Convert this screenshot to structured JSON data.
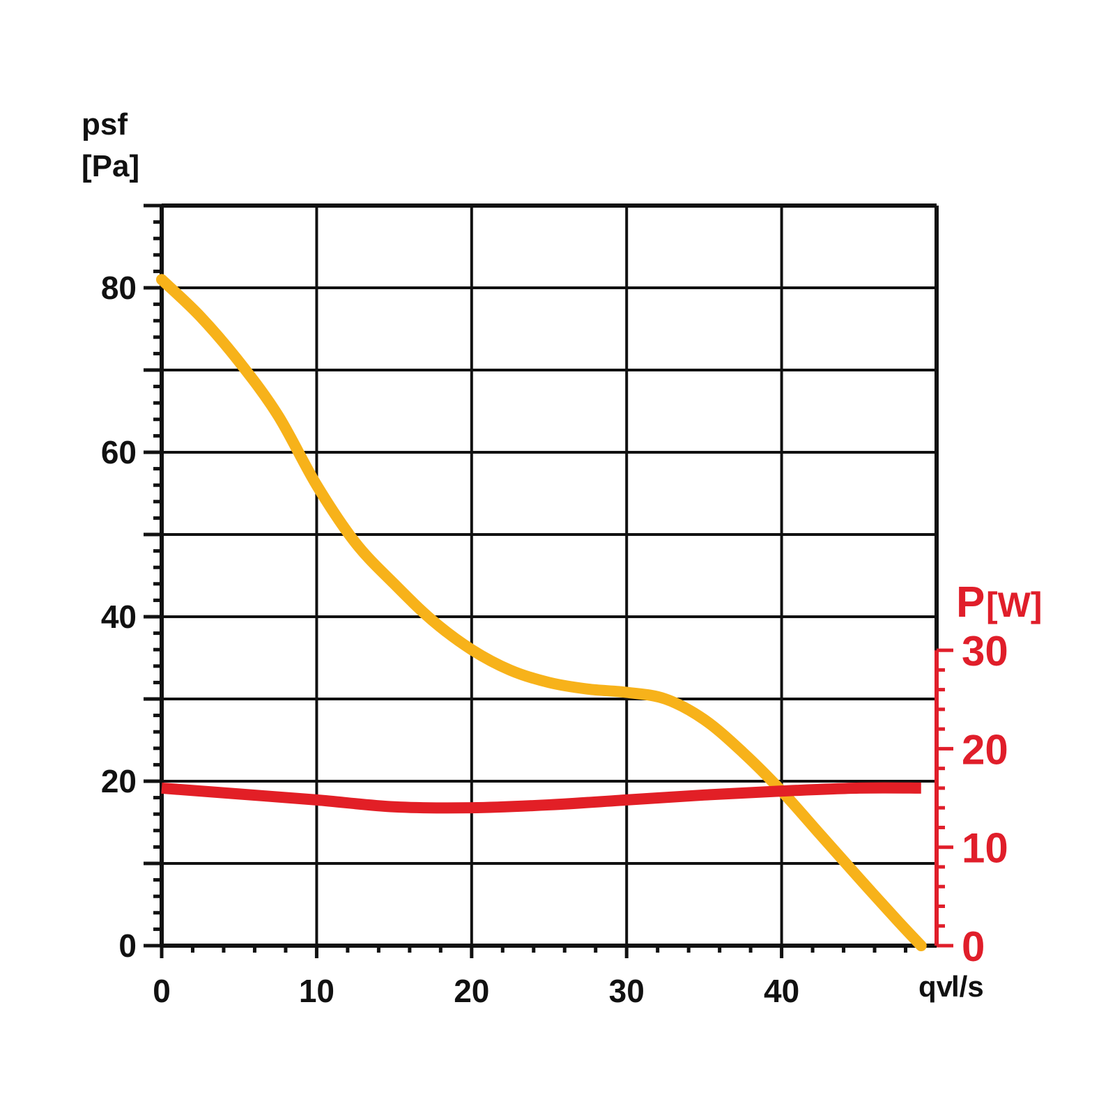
{
  "chart_data": {
    "type": "line",
    "title": "",
    "x_axis": {
      "label_main": "qv",
      "label_unit": "l/s",
      "range": [
        0,
        50
      ],
      "major_ticks": [
        0,
        10,
        20,
        30,
        40
      ],
      "tick_labels": [
        "0",
        "10",
        "20",
        "30",
        "40"
      ],
      "minor_step": 2
    },
    "y_axis_left": {
      "label_main": "psf",
      "label_unit": "[Pa]",
      "range": [
        0,
        90
      ],
      "grid_lines": [
        0,
        10,
        20,
        30,
        40,
        50,
        60,
        70,
        80,
        90
      ],
      "tick_values": [
        0,
        20,
        40,
        60,
        80
      ],
      "tick_labels": [
        "0",
        "20",
        "40",
        "60",
        "80"
      ],
      "minor_step": 2
    },
    "y_axis_right": {
      "label_main": "P",
      "label_unit": "[W]",
      "range": [
        0,
        30
      ],
      "tick_values": [
        0,
        10,
        20,
        30
      ],
      "tick_labels": [
        "0",
        "10",
        "20",
        "30"
      ],
      "minor_step": 2
    },
    "grid": true,
    "colors": {
      "pressure_curve": "#f7b21a",
      "power_curve": "#e21f26",
      "grid": "#111111",
      "right_axis": "#e01e2a"
    },
    "series": [
      {
        "axis": "left",
        "x": [
          0,
          2.5,
          5,
          7.5,
          10,
          12.5,
          15,
          17.5,
          20,
          22.5,
          25,
          27.5,
          30,
          32.5,
          35,
          37.5,
          40,
          42.5,
          45,
          47.5,
          49
        ],
        "y": [
          81,
          76.5,
          71,
          64.5,
          56,
          49,
          44,
          39.5,
          36,
          33.5,
          32,
          31.2,
          30.8,
          30,
          27.5,
          23.5,
          18.8,
          13.5,
          8.2,
          3,
          0
        ]
      },
      {
        "axis": "right",
        "x": [
          0,
          5,
          10,
          15,
          20,
          25,
          30,
          35,
          40,
          45,
          49
        ],
        "y": [
          16,
          15.4,
          14.8,
          14.1,
          14.0,
          14.3,
          14.8,
          15.3,
          15.7,
          16,
          16
        ]
      }
    ]
  }
}
